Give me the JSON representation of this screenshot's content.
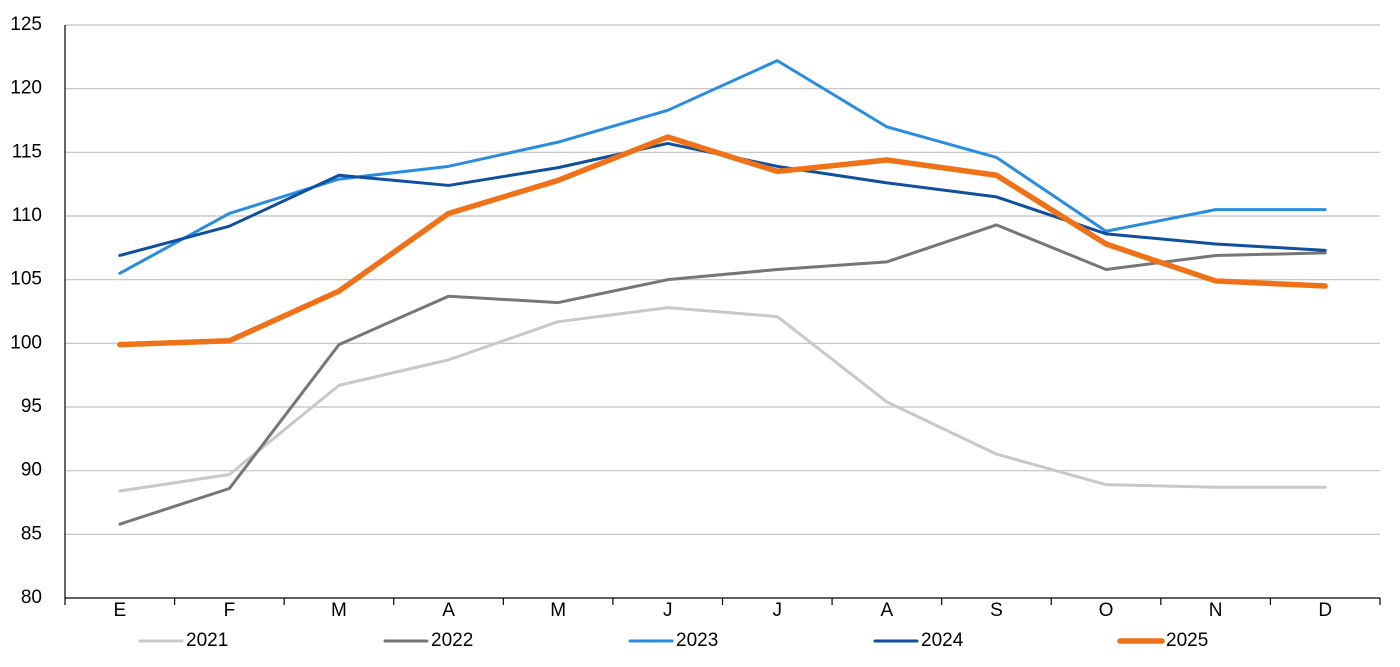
{
  "chart_data": {
    "type": "line",
    "categories": [
      "E",
      "F",
      "M",
      "A",
      "M",
      "J",
      "J",
      "A",
      "S",
      "O",
      "N",
      "D"
    ],
    "series": [
      {
        "name": "2021",
        "color": "#c8c8c8",
        "width": 3,
        "values": [
          88.4,
          89.7,
          96.7,
          98.7,
          101.7,
          102.8,
          102.1,
          95.4,
          91.3,
          88.9,
          88.7,
          88.7
        ]
      },
      {
        "name": "2022",
        "color": "#767676",
        "width": 3,
        "values": [
          85.8,
          88.6,
          99.9,
          103.7,
          103.2,
          105.0,
          105.8,
          106.4,
          109.3,
          105.8,
          106.9,
          107.1
        ]
      },
      {
        "name": "2023",
        "color": "#2a8ce0",
        "width": 3,
        "values": [
          105.5,
          110.2,
          112.9,
          113.9,
          115.8,
          118.3,
          122.2,
          117.0,
          114.6,
          108.8,
          110.5,
          110.5
        ]
      },
      {
        "name": "2024",
        "color": "#0f4f9e",
        "width": 3,
        "values": [
          106.9,
          109.2,
          113.2,
          112.4,
          113.8,
          115.7,
          113.9,
          112.6,
          111.5,
          108.6,
          107.8,
          107.3
        ]
      },
      {
        "name": "2025",
        "color": "#f07218",
        "width": 5.5,
        "values": [
          99.9,
          100.2,
          104.1,
          110.2,
          112.8,
          116.2,
          113.5,
          114.4,
          113.2,
          107.8,
          104.9,
          104.5
        ]
      }
    ],
    "ylim": [
      80,
      125
    ],
    "yticks": [
      80,
      85,
      90,
      95,
      100,
      105,
      110,
      115,
      120,
      125
    ],
    "grid": true,
    "legend": "bottom"
  }
}
